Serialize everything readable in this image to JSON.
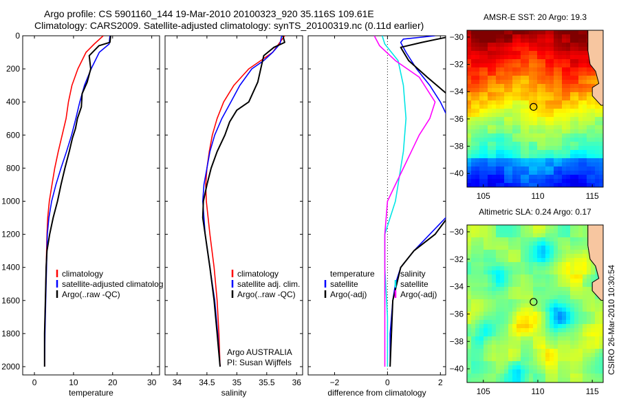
{
  "header": {
    "line1": "Argo profile: CS 5901160_144 19-Mar-2010 20100323_920 35.116S 109.61E",
    "line2": "Climatology: CARS2009. Satellite-adjusted climatology: synTS_20100319.nc (0.11d earlier)"
  },
  "credit": "CSIRO 26-Mar-2010 10:30:54",
  "colors": {
    "climatology": "#ff0000",
    "satellite": "#0000ff",
    "argo": "#000000",
    "sal_sat": "#00e5e5",
    "sal_argo": "#ff00ff"
  },
  "chart_data": [
    {
      "type": "line",
      "xlabel": "temperature",
      "ylabel": "",
      "xlim": [
        -3,
        32
      ],
      "ylim": [
        2050,
        0
      ],
      "x_ticks": [
        0,
        10,
        20,
        30
      ],
      "y_ticks": [
        0,
        200,
        400,
        600,
        800,
        1000,
        1200,
        1400,
        1600,
        1800,
        2000
      ],
      "legend": [
        "climatology",
        "satellite-adjusted climatology",
        "Argo(..raw -QC)"
      ],
      "legend_visible": [
        "climatology",
        "satellite-adjusted climatolog",
        "Argo(..raw -QC)"
      ],
      "series": [
        {
          "name": "climatology",
          "color": "#ff0000",
          "x": [
            17.6,
            15.3,
            13.2,
            11.1,
            9.6,
            8.7,
            8.1,
            7.1,
            6.1,
            5.2,
            4.5,
            3.8,
            3.4,
            3.2,
            3.0,
            2.8,
            2.6,
            2.6
          ],
          "y": [
            0,
            50,
            100,
            200,
            300,
            400,
            500,
            600,
            700,
            800,
            900,
            1000,
            1100,
            1200,
            1400,
            1600,
            1800,
            2000
          ]
        },
        {
          "name": "satellite-adjusted climatology",
          "color": "#0000ff",
          "x": [
            19.3,
            19.1,
            16.6,
            14.5,
            12.8,
            11.6,
            10.6,
            9.5,
            8.2,
            6.8,
            5.5,
            4.4,
            3.7,
            3.3,
            3.1,
            2.9,
            2.7,
            2.6
          ],
          "y": [
            0,
            50,
            100,
            200,
            300,
            400,
            500,
            600,
            700,
            800,
            900,
            1000,
            1100,
            1200,
            1400,
            1600,
            1800,
            2000
          ]
        },
        {
          "name": "Argo(..raw -QC)",
          "color": "#000000",
          "x": [
            19.5,
            19.3,
            16.5,
            14.0,
            14.4,
            13.5,
            12.2,
            12.0,
            11.0,
            10.5,
            9.7,
            8.9,
            7.8,
            6.8,
            5.9,
            4.8,
            3.9,
            3.2,
            3.0,
            2.8,
            2.6,
            2.6
          ],
          "y": [
            0,
            40,
            60,
            120,
            200,
            280,
            350,
            430,
            500,
            560,
            620,
            700,
            800,
            900,
            1000,
            1100,
            1200,
            1300,
            1400,
            1600,
            1800,
            2000
          ]
        }
      ]
    },
    {
      "type": "line",
      "xlabel": "salinity",
      "xlim": [
        33.8,
        36.1
      ],
      "ylim": [
        2050,
        0
      ],
      "x_ticks": [
        34,
        34.5,
        35,
        35.5,
        36
      ],
      "legend": [
        "climatology",
        "satellite adj. clim.",
        "Argo(..raw -QC)"
      ],
      "annotation": [
        "Argo AUSTRALIA",
        "PI: Susan Wijffels"
      ],
      "series": [
        {
          "name": "climatology",
          "color": "#ff0000",
          "x": [
            35.8,
            35.7,
            35.6,
            35.4,
            35.2,
            34.95,
            34.78,
            34.67,
            34.59,
            34.54,
            34.5,
            34.48,
            34.49,
            34.55,
            34.62,
            34.67,
            34.7,
            34.72
          ],
          "y": [
            0,
            50,
            100,
            150,
            200,
            300,
            400,
            500,
            600,
            700,
            800,
            900,
            1000,
            1200,
            1400,
            1600,
            1800,
            2000
          ]
        },
        {
          "name": "satellite adj. clim.",
          "color": "#0000ff",
          "x": [
            35.75,
            35.72,
            35.6,
            35.45,
            35.25,
            35.05,
            34.9,
            34.75,
            34.63,
            34.55,
            34.5,
            34.45,
            34.43,
            34.47,
            34.55,
            34.63,
            34.68,
            34.72
          ],
          "y": [
            0,
            50,
            100,
            150,
            200,
            300,
            400,
            500,
            600,
            700,
            800,
            900,
            1000,
            1200,
            1400,
            1600,
            1800,
            2000
          ]
        },
        {
          "name": "Argo(..raw -QC)",
          "color": "#000000",
          "x": [
            35.77,
            35.8,
            35.62,
            35.45,
            35.4,
            35.35,
            35.2,
            35.0,
            34.88,
            34.8,
            34.67,
            34.57,
            34.5,
            34.44,
            34.43,
            34.47,
            34.55,
            34.62,
            34.67,
            34.72
          ],
          "y": [
            0,
            40,
            70,
            120,
            200,
            280,
            400,
            450,
            520,
            600,
            700,
            800,
            900,
            1000,
            1100,
            1200,
            1400,
            1600,
            1800,
            2000
          ]
        }
      ]
    },
    {
      "type": "line",
      "xlabel": "difference from climatology",
      "xlim": [
        -3,
        2.2
      ],
      "ylim": [
        2050,
        0
      ],
      "x_ticks": [
        -2,
        0,
        2
      ],
      "legend_left_title": "temperature",
      "legend_right_title": "salinity",
      "legend_left": [
        "satellite",
        "Argo(-adj)"
      ],
      "legend_right": [
        "satellite",
        "Argo(-adj)"
      ],
      "series": [
        {
          "name": "temperature satellite",
          "color": "#0000ff",
          "x": [
            1.8,
            0.6,
            0.5,
            0.7,
            1.1,
            1.6,
            2.0,
            2.3,
            2.6,
            2.9,
            3.2,
            3.4,
            2.8,
            2.2,
            1.6,
            1.0,
            0.5,
            0.3,
            0.2,
            0.1,
            0.1
          ],
          "y": [
            0,
            20,
            40,
            100,
            200,
            300,
            400,
            500,
            600,
            700,
            800,
            900,
            1000,
            1100,
            1200,
            1300,
            1400,
            1500,
            1600,
            1800,
            2000
          ]
        },
        {
          "name": "temperature Argo(-adj)",
          "color": "#000000",
          "x": [
            2.5,
            1.3,
            0.5,
            0.8,
            1.5,
            2.6,
            3.2,
            3.1,
            2.8,
            2.6,
            2.8,
            2.5,
            1.8,
            1.0,
            0.5,
            0.2,
            0.1
          ],
          "y": [
            0,
            40,
            70,
            150,
            250,
            400,
            500,
            600,
            700,
            850,
            950,
            1050,
            1200,
            1300,
            1400,
            1600,
            2000
          ]
        },
        {
          "name": "salinity satellite",
          "color": "#00e5e5",
          "x": [
            -0.2,
            -0.1,
            0.4,
            0.6,
            0.7,
            0.6,
            0.5,
            0.4,
            0.3,
            0.1,
            -0.1,
            -0.1,
            0.0,
            0.0
          ],
          "y": [
            0,
            50,
            150,
            300,
            500,
            700,
            800,
            900,
            1000,
            1100,
            1200,
            1400,
            1700,
            2000
          ]
        },
        {
          "name": "salinity Argo(-adj)",
          "color": "#ff00ff",
          "x": [
            -0.5,
            -0.3,
            0.3,
            1.2,
            1.8,
            1.6,
            1.2,
            0.9,
            0.6,
            0.3,
            0.0,
            -0.1,
            -0.1,
            -0.1
          ],
          "y": [
            0,
            60,
            150,
            250,
            400,
            500,
            600,
            700,
            800,
            900,
            1000,
            1200,
            1600,
            2000
          ]
        }
      ]
    },
    {
      "type": "heatmap",
      "title": "AMSR-E SST: 20 Argo: 19.3",
      "xlim": [
        103.5,
        116
      ],
      "ylim": [
        -41,
        -29.5
      ],
      "x_ticks": [
        105,
        110,
        115
      ],
      "y_ticks": [
        -30,
        -32,
        -34,
        -36,
        -38,
        -40
      ],
      "marker": {
        "lon": 109.61,
        "lat": -35.116
      }
    },
    {
      "type": "heatmap",
      "title": "Altimetric SLA: 0.24 Argo: 0.17",
      "xlim": [
        103.5,
        116
      ],
      "ylim": [
        -41,
        -29.5
      ],
      "x_ticks": [
        105,
        110,
        115
      ],
      "y_ticks": [
        -30,
        -32,
        -34,
        -36,
        -38,
        -40
      ],
      "marker": {
        "lon": 109.61,
        "lat": -35.116
      }
    }
  ]
}
